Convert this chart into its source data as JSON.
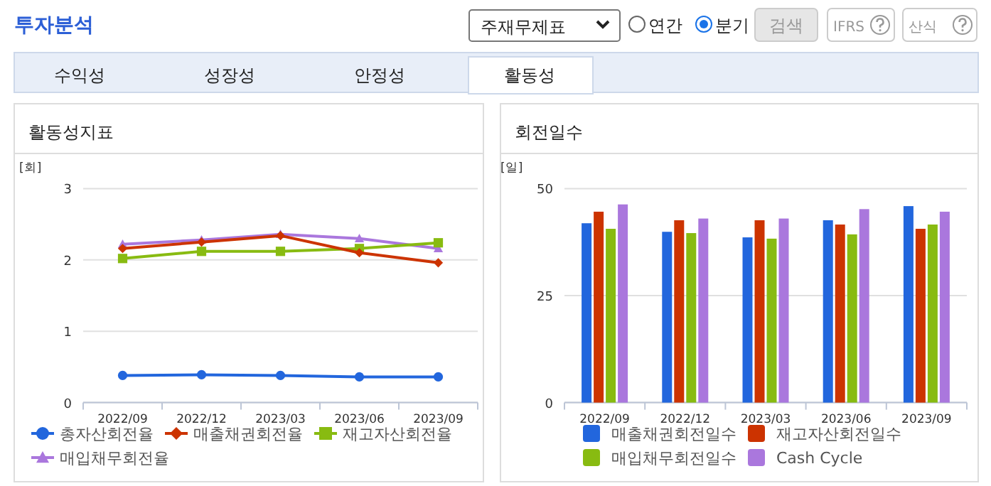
{
  "chart_data": [
    {
      "type": "other",
      "title": "투자분석",
      "annotations": [
        "주재무제표",
        "연간",
        "분기",
        "검색",
        "IFRS",
        "산식",
        "수익성",
        "성장성",
        "안정성",
        "활동성"
      ]
    },
    {
      "type": "line",
      "title": "활동성지표",
      "ylabel": "[회]",
      "categories": [
        "2022/09",
        "2022/12",
        "2023/03",
        "2023/06",
        "2023/09"
      ],
      "ylim": [
        0,
        3
      ],
      "yticks": [
        0,
        1,
        2,
        3
      ],
      "grid": "y",
      "legend": "bottom",
      "series": [
        {
          "name": "총자산회전율",
          "color": "#2266dd",
          "marker": "circle",
          "values": [
            0.38,
            0.39,
            0.38,
            0.36,
            0.36
          ]
        },
        {
          "name": "매출채권회전율",
          "color": "#cc3300",
          "marker": "diamond",
          "values": [
            2.16,
            2.25,
            2.34,
            2.1,
            1.96
          ]
        },
        {
          "name": "재고자산회전율",
          "color": "#88bb11",
          "marker": "square",
          "values": [
            2.02,
            2.12,
            2.12,
            2.16,
            2.24
          ]
        },
        {
          "name": "매입채무회전율",
          "color": "#aa77dd",
          "marker": "triangle",
          "values": [
            2.22,
            2.28,
            2.36,
            2.3,
            2.16
          ]
        }
      ]
    },
    {
      "type": "bar",
      "title": "회전일수",
      "ylabel": "[일]",
      "categories": [
        "2022/09",
        "2022/12",
        "2023/03",
        "2023/06",
        "2023/09"
      ],
      "ylim": [
        0,
        50
      ],
      "yticks": [
        0,
        25,
        50
      ],
      "grid": "y",
      "legend": "bottom",
      "series": [
        {
          "name": "매출채권회전일수",
          "color": "#2266dd",
          "values": [
            41.9,
            39.9,
            38.6,
            42.6,
            45.9
          ]
        },
        {
          "name": "재고자산회전일수",
          "color": "#cc3300",
          "values": [
            44.6,
            42.6,
            42.6,
            41.6,
            40.6
          ]
        },
        {
          "name": "매입채무회전일수",
          "color": "#88bb11",
          "values": [
            40.6,
            39.6,
            38.3,
            39.3,
            41.6
          ]
        },
        {
          "name": "Cash Cycle",
          "color": "#aa77dd",
          "values": [
            46.3,
            43.0,
            43.0,
            45.2,
            44.6
          ]
        }
      ]
    }
  ]
}
